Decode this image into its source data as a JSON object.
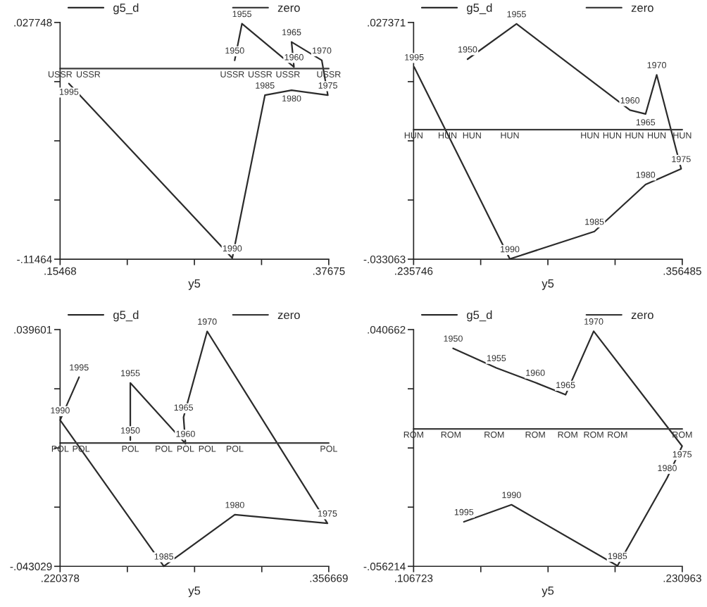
{
  "chart_data": [
    {
      "type": "line",
      "xlabel": "y5",
      "legend": "top",
      "marker": "none",
      "grid": false,
      "xlim": [
        0.15468,
        0.37675
      ],
      "ylim": [
        -0.11464,
        0.027748
      ],
      "xticks": [
        {
          "value": 0.15468,
          "label": ".15468"
        },
        {
          "value": 0.2102,
          "label": null
        },
        {
          "value": 0.2657,
          "label": null
        },
        {
          "value": 0.3212,
          "label": null
        },
        {
          "value": 0.37675,
          "label": ".37675"
        }
      ],
      "yticks": [
        {
          "value": -0.11464,
          "label": "-.11464"
        },
        {
          "value": -0.079043,
          "label": null
        },
        {
          "value": -0.043446,
          "label": null
        },
        {
          "value": -0.007849,
          "label": null
        },
        {
          "value": 0.027748,
          "label": ".027748"
        }
      ],
      "series": [
        {
          "name": "g5_d",
          "color": "#2b2b2b",
          "x": [
            0.299,
            0.305,
            0.348,
            0.346,
            0.371,
            0.376,
            0.346,
            0.324,
            0.297,
            0.162
          ],
          "values": [
            0.005,
            0.027,
            0.001,
            0.016,
            0.005,
            -0.016,
            -0.013,
            -0.016,
            -0.114,
            -0.009
          ]
        },
        {
          "name": "zero",
          "color": "#3c3c3c",
          "x": [
            0.15468,
            0.178,
            0.297,
            0.32,
            0.343,
            0.37675
          ],
          "values": [
            0,
            0,
            0,
            0,
            0,
            0
          ]
        }
      ],
      "annotations": [
        {
          "text": "1950",
          "x": 0.299,
          "y": 0.005
        },
        {
          "text": "1955",
          "x": 0.305,
          "y": 0.027
        },
        {
          "text": "1960",
          "x": 0.348,
          "y": 0.001
        },
        {
          "text": "1965",
          "x": 0.346,
          "y": 0.016
        },
        {
          "text": "1970",
          "x": 0.371,
          "y": 0.005
        },
        {
          "text": "1975",
          "x": 0.376,
          "y": -0.016
        },
        {
          "text": "1980",
          "x": 0.346,
          "y": -0.013
        },
        {
          "text": "1985",
          "x": 0.324,
          "y": -0.016
        },
        {
          "text": "1990",
          "x": 0.297,
          "y": -0.114
        },
        {
          "text": "1995",
          "x": 0.162,
          "y": -0.009
        },
        {
          "text": "USSR",
          "x": 0.15468,
          "y": 0
        },
        {
          "text": "USSR",
          "x": 0.178,
          "y": 0
        },
        {
          "text": "USSR",
          "x": 0.297,
          "y": 0
        },
        {
          "text": "USSR",
          "x": 0.32,
          "y": 0
        },
        {
          "text": "USSR",
          "x": 0.343,
          "y": 0
        },
        {
          "text": "USSR",
          "x": 0.37675,
          "y": 0
        }
      ]
    },
    {
      "type": "line",
      "xlabel": "y5",
      "legend": "top",
      "marker": "none",
      "grid": false,
      "xlim": [
        0.235746,
        0.356485
      ],
      "ylim": [
        -0.033063,
        0.027371
      ],
      "xticks": [
        {
          "value": 0.235746,
          "label": ".235746"
        },
        {
          "value": 0.2659,
          "label": null
        },
        {
          "value": 0.2961,
          "label": null
        },
        {
          "value": 0.3263,
          "label": null
        },
        {
          "value": 0.356485,
          "label": ".356485"
        }
      ],
      "yticks": [
        {
          "value": -0.033063,
          "label": "-.033063"
        },
        {
          "value": -0.017955,
          "label": null
        },
        {
          "value": -0.002846,
          "label": null
        },
        {
          "value": 0.012263,
          "label": null
        },
        {
          "value": 0.027371,
          "label": ".027371"
        }
      ],
      "series": [
        {
          "name": "g5_d",
          "color": "#2b2b2b",
          "x": [
            0.26,
            0.282,
            0.333,
            0.34,
            0.345,
            0.356,
            0.34,
            0.317,
            0.279,
            0.236
          ],
          "values": [
            0.018,
            0.027,
            0.005,
            0.004,
            0.014,
            -0.01,
            -0.014,
            -0.026,
            -0.033,
            0.016
          ]
        },
        {
          "name": "zero",
          "color": "#3c3c3c",
          "x": [
            0.235746,
            0.251,
            0.262,
            0.279,
            0.315,
            0.325,
            0.335,
            0.345,
            0.356485
          ],
          "values": [
            0,
            0,
            0,
            0,
            0,
            0,
            0,
            0,
            0
          ]
        }
      ],
      "annotations": [
        {
          "text": "1950",
          "x": 0.26,
          "y": 0.018
        },
        {
          "text": "1955",
          "x": 0.282,
          "y": 0.027
        },
        {
          "text": "1960",
          "x": 0.333,
          "y": 0.005
        },
        {
          "text": "1965",
          "x": 0.34,
          "y": 0.004
        },
        {
          "text": "1970",
          "x": 0.345,
          "y": 0.014
        },
        {
          "text": "1975",
          "x": 0.356,
          "y": -0.01
        },
        {
          "text": "1980",
          "x": 0.34,
          "y": -0.014
        },
        {
          "text": "1985",
          "x": 0.317,
          "y": -0.026
        },
        {
          "text": "1990",
          "x": 0.279,
          "y": -0.033
        },
        {
          "text": "1995",
          "x": 0.236,
          "y": 0.016
        },
        {
          "text": "HUN",
          "x": 0.235746,
          "y": 0
        },
        {
          "text": "HUN",
          "x": 0.251,
          "y": 0
        },
        {
          "text": "HUN",
          "x": 0.262,
          "y": 0
        },
        {
          "text": "HUN",
          "x": 0.279,
          "y": 0
        },
        {
          "text": "HUN",
          "x": 0.315,
          "y": 0
        },
        {
          "text": "HUN",
          "x": 0.325,
          "y": 0
        },
        {
          "text": "HUN",
          "x": 0.335,
          "y": 0
        },
        {
          "text": "HUN",
          "x": 0.345,
          "y": 0
        },
        {
          "text": "HUN",
          "x": 0.356485,
          "y": 0
        }
      ]
    },
    {
      "type": "line",
      "xlabel": "y5",
      "legend": "top",
      "marker": "none",
      "grid": false,
      "xlim": [
        0.220378,
        0.356669
      ],
      "ylim": [
        -0.043029,
        0.039601
      ],
      "xticks": [
        {
          "value": 0.220378,
          "label": ".220378"
        },
        {
          "value": 0.2545,
          "label": null
        },
        {
          "value": 0.2886,
          "label": null
        },
        {
          "value": 0.3227,
          "label": null
        },
        {
          "value": 0.356669,
          "label": ".356669"
        }
      ],
      "yticks": [
        {
          "value": -0.043029,
          "label": "-.043029"
        },
        {
          "value": -0.022372,
          "label": null
        },
        {
          "value": -0.001714,
          "label": null
        },
        {
          "value": 0.018944,
          "label": null
        },
        {
          "value": 0.039601,
          "label": ".039601"
        }
      ],
      "series": [
        {
          "name": "g5_d",
          "color": "#2b2b2b",
          "x": [
            0.256,
            0.256,
            0.284,
            0.283,
            0.295,
            0.356,
            0.309,
            0.273,
            0.2204,
            0.23
          ],
          "values": [
            0.001,
            0.021,
            -0.0002,
            0.009,
            0.039,
            -0.028,
            -0.025,
            -0.043,
            0.008,
            0.023
          ]
        },
        {
          "name": "zero",
          "color": "#3c3c3c",
          "x": [
            0.220378,
            0.231,
            0.256,
            0.273,
            0.284,
            0.295,
            0.309,
            0.356669
          ],
          "values": [
            0,
            0,
            0,
            0,
            0,
            0,
            0,
            0
          ]
        }
      ],
      "annotations": [
        {
          "text": "1950",
          "x": 0.256,
          "y": 0.001
        },
        {
          "text": "1955",
          "x": 0.256,
          "y": 0.021
        },
        {
          "text": "1960",
          "x": 0.284,
          "y": -0.0002
        },
        {
          "text": "1965",
          "x": 0.283,
          "y": 0.009
        },
        {
          "text": "1970",
          "x": 0.295,
          "y": 0.039
        },
        {
          "text": "1975",
          "x": 0.356,
          "y": -0.028
        },
        {
          "text": "1980",
          "x": 0.309,
          "y": -0.025
        },
        {
          "text": "1985",
          "x": 0.273,
          "y": -0.043
        },
        {
          "text": "1990",
          "x": 0.2204,
          "y": 0.008
        },
        {
          "text": "1995",
          "x": 0.23,
          "y": 0.023
        },
        {
          "text": "POL",
          "x": 0.220378,
          "y": 0
        },
        {
          "text": "POL",
          "x": 0.231,
          "y": 0
        },
        {
          "text": "POL",
          "x": 0.256,
          "y": 0
        },
        {
          "text": "POL",
          "x": 0.273,
          "y": 0
        },
        {
          "text": "POL",
          "x": 0.284,
          "y": 0
        },
        {
          "text": "POL",
          "x": 0.295,
          "y": 0
        },
        {
          "text": "POL",
          "x": 0.309,
          "y": 0
        },
        {
          "text": "POL",
          "x": 0.356669,
          "y": 0
        }
      ]
    },
    {
      "type": "line",
      "xlabel": "y5",
      "legend": "top",
      "marker": "none",
      "grid": false,
      "xlim": [
        0.106723,
        0.230963
      ],
      "ylim": [
        -0.056214,
        0.040662
      ],
      "xticks": [
        {
          "value": 0.106723,
          "label": ".106723"
        },
        {
          "value": 0.1378,
          "label": null
        },
        {
          "value": 0.1689,
          "label": null
        },
        {
          "value": 0.1999,
          "label": null
        },
        {
          "value": 0.230963,
          "label": ".230963"
        }
      ],
      "yticks": [
        {
          "value": -0.056214,
          "label": "-.056214"
        },
        {
          "value": -0.031995,
          "label": null
        },
        {
          "value": -0.007776,
          "label": null
        },
        {
          "value": 0.016443,
          "label": null
        },
        {
          "value": 0.040662,
          "label": ".040662"
        }
      ],
      "series": [
        {
          "name": "g5_d",
          "color": "#2b2b2b",
          "x": [
            0.125,
            0.145,
            0.163,
            0.177,
            0.19,
            0.2309,
            0.224,
            0.201,
            0.152,
            0.13
          ],
          "values": [
            0.033,
            0.025,
            0.019,
            0.014,
            0.04,
            -0.007,
            -0.02,
            -0.056,
            -0.031,
            -0.038
          ]
        },
        {
          "name": "zero",
          "color": "#3c3c3c",
          "x": [
            0.106723,
            0.124,
            0.144,
            0.163,
            0.178,
            0.19,
            0.201,
            0.230963
          ],
          "values": [
            0,
            0,
            0,
            0,
            0,
            0,
            0,
            0
          ]
        }
      ],
      "annotations": [
        {
          "text": "1950",
          "x": 0.125,
          "y": 0.033
        },
        {
          "text": "1955",
          "x": 0.145,
          "y": 0.025
        },
        {
          "text": "1960",
          "x": 0.163,
          "y": 0.019
        },
        {
          "text": "1965",
          "x": 0.177,
          "y": 0.014
        },
        {
          "text": "1970",
          "x": 0.19,
          "y": 0.04
        },
        {
          "text": "1975",
          "x": 0.2309,
          "y": -0.007
        },
        {
          "text": "1980",
          "x": 0.224,
          "y": -0.02
        },
        {
          "text": "1985",
          "x": 0.201,
          "y": -0.056
        },
        {
          "text": "1990",
          "x": 0.152,
          "y": -0.031
        },
        {
          "text": "1995",
          "x": 0.13,
          "y": -0.038
        },
        {
          "text": "ROM",
          "x": 0.106723,
          "y": 0
        },
        {
          "text": "ROM",
          "x": 0.124,
          "y": 0
        },
        {
          "text": "ROM",
          "x": 0.144,
          "y": 0
        },
        {
          "text": "ROM",
          "x": 0.163,
          "y": 0
        },
        {
          "text": "ROM",
          "x": 0.178,
          "y": 0
        },
        {
          "text": "ROM",
          "x": 0.19,
          "y": 0
        },
        {
          "text": "ROM",
          "x": 0.201,
          "y": 0
        },
        {
          "text": "ROM",
          "x": 0.230963,
          "y": 0
        }
      ]
    }
  ]
}
